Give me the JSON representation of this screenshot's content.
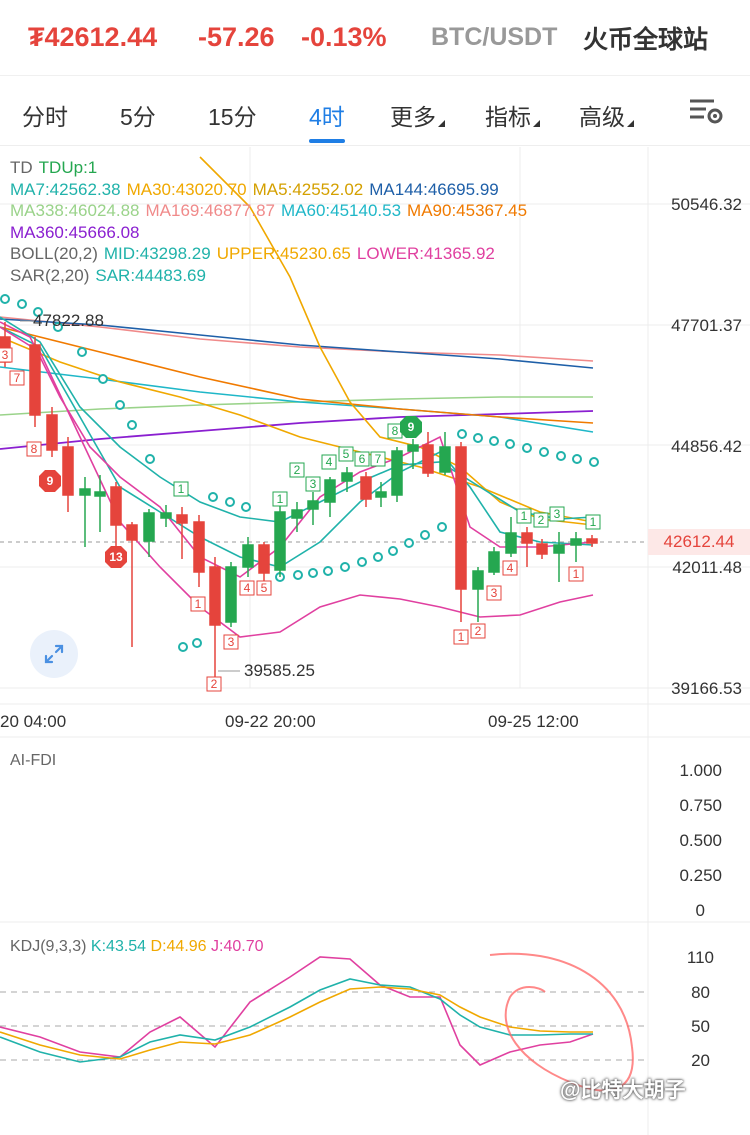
{
  "ticker": {
    "last_price": "₮42612.44",
    "change": "-57.26",
    "change_pct": "-0.13%",
    "pair": "BTC/USDT",
    "exchange": "火币全球站"
  },
  "tabs": [
    "分时",
    "5分",
    "15分",
    "4时",
    "更多",
    "指标",
    "高级"
  ],
  "active_tab": "4时",
  "settings_icon": "chart-settings-icon",
  "indicators": {
    "td": {
      "label": "TD",
      "value": "TDUp:1"
    },
    "ma_line1": [
      {
        "text": "MA7:42562.38",
        "color": "#20b2aa"
      },
      {
        "text": "MA30:43020.70",
        "color": "#f0a800"
      },
      {
        "text": "MA5:42552.02",
        "color": "#d4a000"
      },
      {
        "text": "MA144:46695.99",
        "color": "#1e5fa8"
      }
    ],
    "ma_line2": [
      {
        "text": "MA338:46024.88",
        "color": "#9ad38a"
      },
      {
        "text": "MA169:46877.87",
        "color": "#f08a8a"
      },
      {
        "text": "MA60:45140.53",
        "color": "#1fb7c8"
      },
      {
        "text": "MA90:45367.45",
        "color": "#f07a00"
      }
    ],
    "ma_line3": [
      {
        "text": "MA360:45666.08",
        "color": "#8a1fd0"
      }
    ],
    "boll": [
      {
        "text": "BOLL(20,2)",
        "color": "#666666"
      },
      {
        "text": "MID:43298.29",
        "color": "#20b2aa"
      },
      {
        "text": "UPPER:45230.65",
        "color": "#f0a800"
      },
      {
        "text": "LOWER:41365.92",
        "color": "#e040a0"
      }
    ],
    "sar": [
      {
        "text": "SAR(2,20)",
        "color": "#666666"
      },
      {
        "text": "SAR:44483.69",
        "color": "#20b2aa"
      }
    ]
  },
  "price_axis": [
    "50546.32",
    "47701.37",
    "44856.42",
    "42011.48",
    "39166.53"
  ],
  "last_price_tag": "42612.44",
  "high_label": "47822.88",
  "low_label": "39585.25",
  "time_axis": [
    "20 04:00",
    "09-22 20:00",
    "09-25 12:00"
  ],
  "fdi": {
    "title": "AI-FDI",
    "axis": [
      "1.000",
      "0.750",
      "0.500",
      "0.250",
      "0"
    ]
  },
  "kdj": {
    "title": [
      {
        "text": "KDJ(9,3,3)",
        "color": "#666666"
      },
      {
        "text": "K:43.54",
        "color": "#20b2aa"
      },
      {
        "text": "D:44.96",
        "color": "#f0a800"
      },
      {
        "text": "J:40.70",
        "color": "#e040a0"
      }
    ],
    "axis": [
      "110",
      "80",
      "50",
      "20"
    ]
  },
  "expand_icon": "expand-arrows-icon",
  "watermark": "@比特大胡子",
  "colors": {
    "up": "#25a750",
    "down": "#e5443c",
    "accent": "#1f7ee5"
  }
}
